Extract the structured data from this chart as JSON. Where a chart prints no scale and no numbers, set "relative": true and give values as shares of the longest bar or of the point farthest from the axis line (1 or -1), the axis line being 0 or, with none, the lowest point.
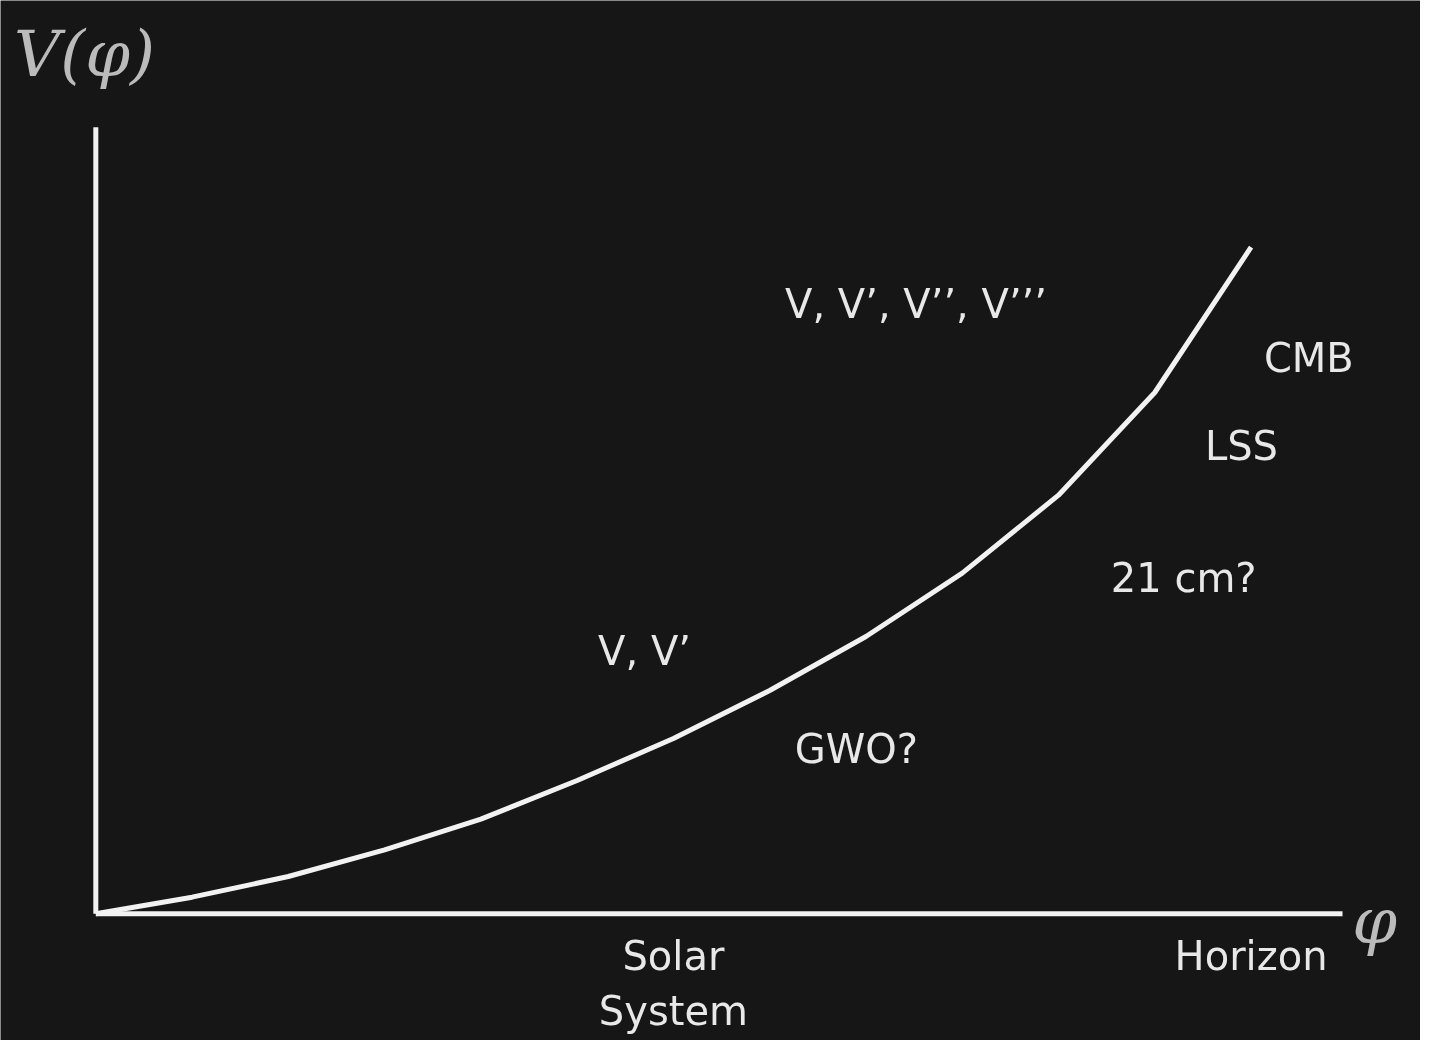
{
  "chart_data": {
    "type": "line",
    "relative": true,
    "xlabel": "φ",
    "ylabel": "V(φ)",
    "categories": [
      null,
      null,
      null,
      null,
      null,
      null,
      "Solar System",
      null,
      null,
      null,
      null,
      null,
      "Horizon"
    ],
    "series": [
      {
        "color": "#f2f2f2",
        "values": [
          0,
          0.025,
          0.056,
          0.096,
          0.142,
          0.2,
          0.263,
          0.335,
          0.416,
          0.511,
          0.628,
          0.782,
          1
        ]
      }
    ],
    "annotations": [
      "V, V’, V’’, V’’’",
      "CMB",
      "LSS",
      "21 cm?",
      "V, V’",
      "GWO?"
    ],
    "grid": false
  }
}
